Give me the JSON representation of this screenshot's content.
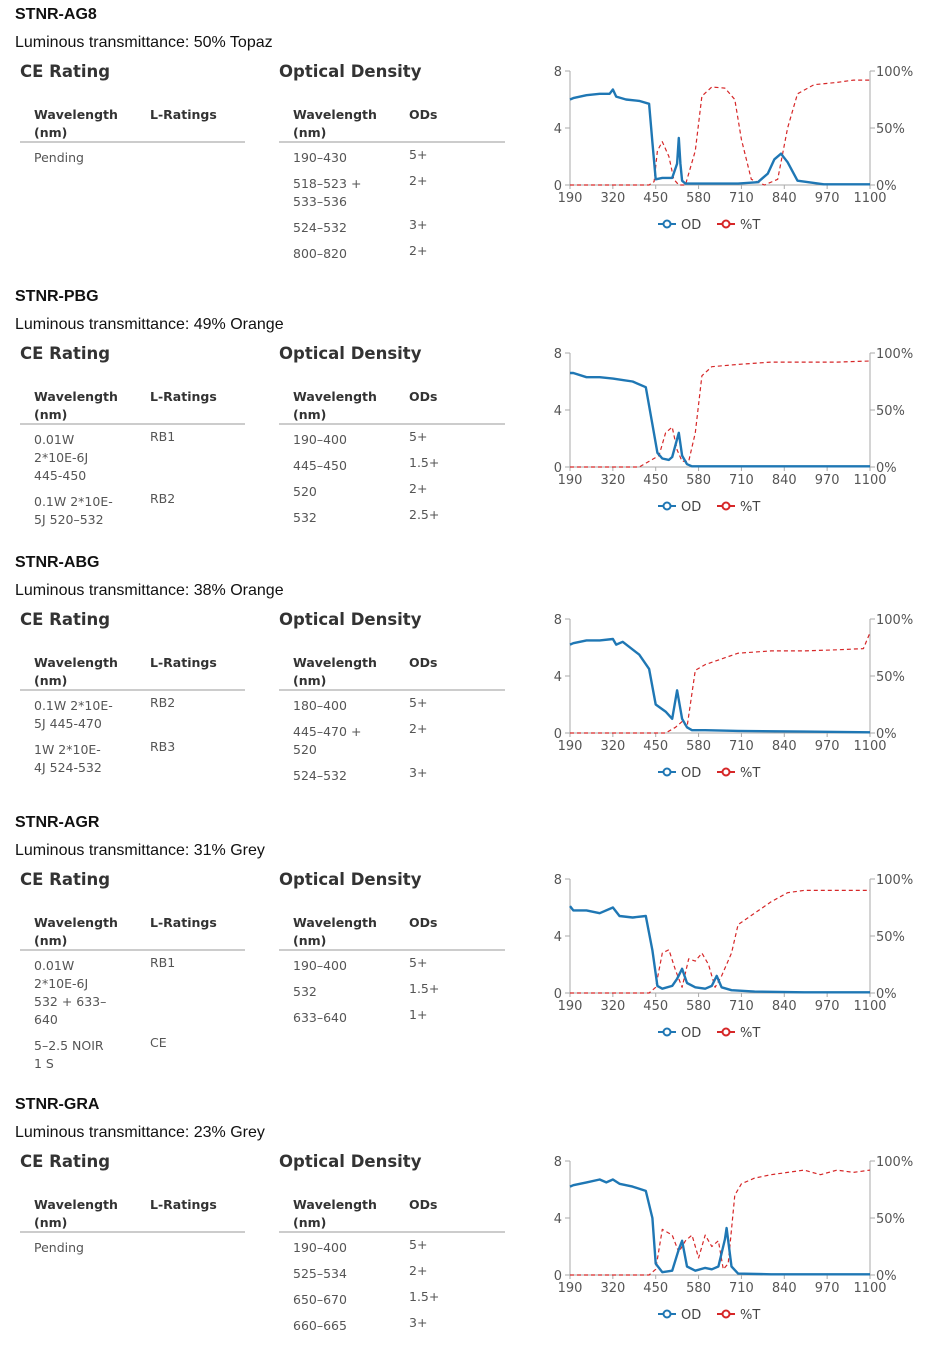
{
  "products": [
    {
      "name": "STNR-AG8",
      "luminous": "Luminous transmittance: 50% Topaz",
      "ce_title": "CE Rating",
      "od_title": "Optical Density",
      "ce_headers": [
        "Wavelength\n(nm)",
        "L-Ratings"
      ],
      "od_headers": [
        "Wavelength\n(nm)",
        "ODs"
      ],
      "ce_rows": [
        [
          "Pending",
          ""
        ]
      ],
      "od_rows": [
        [
          "190–430",
          "5+"
        ],
        [
          "518–523 +\n533–536",
          "2+"
        ],
        [
          "524–532",
          "3+"
        ],
        [
          "800–820",
          "2+"
        ]
      ],
      "chart_data": {
        "type": "line",
        "x_ticks": [
          "190",
          "320",
          "450",
          "580",
          "710",
          "840",
          "970",
          "1100"
        ],
        "y_left_ticks": [
          "0",
          "4",
          "8"
        ],
        "y_right_ticks": [
          "0%",
          "50%",
          "100%"
        ],
        "xlim": [
          190,
          1100
        ],
        "ylim_left": [
          0,
          8
        ],
        "ylim_right": [
          0,
          100
        ],
        "legend": "bottom",
        "series": [
          {
            "name": "OD",
            "color": "#1f77b4",
            "style": "solid",
            "axis": "left",
            "x": [
              190,
              200,
              240,
              280,
              310,
              320,
              330,
              360,
              400,
              430,
              440,
              450,
              470,
              500,
              515,
              520,
              525,
              530,
              540,
              560,
              600,
              700,
              760,
              790,
              810,
              830,
              850,
              880,
              960,
              1050,
              1100
            ],
            "y": [
              6.0,
              6.1,
              6.3,
              6.4,
              6.4,
              6.7,
              6.2,
              6.0,
              5.9,
              5.7,
              3.0,
              0.4,
              0.5,
              0.5,
              1.5,
              3.3,
              1.5,
              0.3,
              0.1,
              0.1,
              0.1,
              0.1,
              0.2,
              0.8,
              1.8,
              2.2,
              1.6,
              0.3,
              0.05,
              0.05,
              0.05
            ]
          },
          {
            "name": "%T",
            "color": "#d62728",
            "style": "dashed",
            "axis": "right",
            "x": [
              190,
              430,
              445,
              455,
              470,
              490,
              505,
              520,
              540,
              570,
              590,
              620,
              660,
              690,
              710,
              740,
              780,
              820,
              850,
              880,
              930,
              1000,
              1050,
              1100
            ],
            "y": [
              0,
              0,
              3,
              30,
              38,
              25,
              5,
              0,
              0,
              30,
              78,
              86,
              85,
              75,
              40,
              5,
              0,
              5,
              50,
              80,
              88,
              90,
              92,
              92
            ]
          }
        ]
      }
    },
    {
      "name": "STNR-PBG",
      "luminous": "Luminous transmittance: 49% Orange",
      "ce_title": "CE Rating",
      "od_title": "Optical Density",
      "ce_headers": [
        "Wavelength\n(nm)",
        "L-Ratings"
      ],
      "od_headers": [
        "Wavelength\n(nm)",
        "ODs"
      ],
      "ce_rows": [
        [
          "0.01W\n2*10E-6J\n445-450",
          "RB1"
        ],
        [
          "0.1W 2*10E-\n5J 520–532",
          "RB2"
        ]
      ],
      "od_rows": [
        [
          "190–400",
          "5+"
        ],
        [
          "445–450",
          "1.5+"
        ],
        [
          "520",
          "2+"
        ],
        [
          "532",
          "2.5+"
        ]
      ],
      "chart_data": {
        "type": "line",
        "x_ticks": [
          "190",
          "320",
          "450",
          "580",
          "710",
          "840",
          "970",
          "1100"
        ],
        "y_left_ticks": [
          "0",
          "4",
          "8"
        ],
        "y_right_ticks": [
          "0%",
          "50%",
          "100%"
        ],
        "xlim": [
          190,
          1100
        ],
        "ylim_left": [
          0,
          8
        ],
        "ylim_right": [
          0,
          100
        ],
        "legend": "bottom",
        "series": [
          {
            "name": "OD",
            "color": "#1f77b4",
            "style": "solid",
            "axis": "left",
            "x": [
              190,
              200,
              240,
              280,
              320,
              380,
              420,
              440,
              455,
              470,
              490,
              500,
              520,
              530,
              545,
              560,
              600,
              700,
              900,
              1100
            ],
            "y": [
              6.6,
              6.6,
              6.3,
              6.3,
              6.2,
              6.0,
              5.6,
              3.0,
              1.0,
              0.6,
              0.5,
              0.7,
              2.4,
              0.8,
              0.2,
              0.05,
              0.05,
              0.05,
              0.05,
              0.05
            ]
          },
          {
            "name": "%T",
            "color": "#d62728",
            "style": "dashed",
            "axis": "right",
            "x": [
              190,
              400,
              460,
              480,
              500,
              515,
              530,
              550,
              570,
              590,
              620,
              700,
              800,
              900,
              1000,
              1100
            ],
            "y": [
              0,
              0,
              10,
              30,
              35,
              15,
              5,
              5,
              30,
              80,
              88,
              90,
              92,
              92,
              92,
              93
            ]
          }
        ]
      }
    },
    {
      "name": "STNR-ABG",
      "luminous": "Luminous transmittance: 38% Orange",
      "ce_title": "CE Rating",
      "od_title": "Optical Density",
      "ce_headers": [
        "Wavelength\n(nm)",
        "L-Ratings"
      ],
      "od_headers": [
        "Wavelength\n(nm)",
        "ODs"
      ],
      "ce_rows": [
        [
          "0.1W 2*10E-\n5J 445-470",
          "RB2"
        ],
        [
          "1W 2*10E-\n4J 524-532",
          "RB3"
        ]
      ],
      "od_rows": [
        [
          "180–400",
          "5+"
        ],
        [
          "445–470 +\n520",
          "2+"
        ],
        [
          "524–532",
          "3+"
        ]
      ],
      "chart_data": {
        "type": "line",
        "x_ticks": [
          "190",
          "320",
          "450",
          "580",
          "710",
          "840",
          "970",
          "1100"
        ],
        "y_left_ticks": [
          "0",
          "4",
          "8"
        ],
        "y_right_ticks": [
          "0%",
          "50%",
          "100%"
        ],
        "xlim": [
          190,
          1100
        ],
        "ylim_left": [
          0,
          8
        ],
        "ylim_right": [
          0,
          100
        ],
        "legend": "bottom",
        "series": [
          {
            "name": "OD",
            "color": "#1f77b4",
            "style": "solid",
            "axis": "left",
            "x": [
              190,
              200,
              240,
              280,
              320,
              330,
              350,
              400,
              430,
              450,
              480,
              500,
              515,
              530,
              545,
              560,
              600,
              700,
              900,
              1100
            ],
            "y": [
              6.2,
              6.3,
              6.5,
              6.5,
              6.6,
              6.2,
              6.4,
              5.5,
              4.5,
              2.0,
              1.5,
              1.0,
              3.0,
              1.0,
              0.4,
              0.2,
              0.2,
              0.15,
              0.1,
              0.05
            ]
          },
          {
            "name": "%T",
            "color": "#d62728",
            "style": "dashed",
            "axis": "right",
            "x": [
              190,
              480,
              510,
              530,
              545,
              570,
              600,
              650,
              700,
              800,
              900,
              1000,
              1080,
              1100
            ],
            "y": [
              0,
              0,
              5,
              10,
              5,
              55,
              60,
              65,
              70,
              72,
              72,
              73,
              74,
              88
            ]
          }
        ]
      }
    },
    {
      "name": "STNR-AGR",
      "luminous": "Luminous transmittance: 31% Grey",
      "ce_title": "CE Rating",
      "od_title": "Optical Density",
      "ce_headers": [
        "Wavelength\n(nm)",
        "L-Ratings"
      ],
      "od_headers": [
        "Wavelength\n(nm)",
        "ODs"
      ],
      "ce_rows": [
        [
          "0.01W\n2*10E-6J\n532 + 633–\n640",
          "RB1"
        ],
        [
          "5–2.5 NOIR\n1 S",
          "CE"
        ]
      ],
      "od_rows": [
        [
          "190–400",
          "5+"
        ],
        [
          "532",
          "1.5+"
        ],
        [
          "633–640",
          "1+"
        ]
      ],
      "chart_data": {
        "type": "line",
        "x_ticks": [
          "190",
          "320",
          "450",
          "580",
          "710",
          "840",
          "970",
          "1100"
        ],
        "y_left_ticks": [
          "0",
          "4",
          "8"
        ],
        "y_right_ticks": [
          "0%",
          "50%",
          "100%"
        ],
        "xlim": [
          190,
          1100
        ],
        "ylim_left": [
          0,
          8
        ],
        "ylim_right": [
          0,
          100
        ],
        "legend": "bottom",
        "series": [
          {
            "name": "OD",
            "color": "#1f77b4",
            "style": "solid",
            "axis": "left",
            "x": [
              190,
              200,
              240,
              280,
              320,
              340,
              380,
              420,
              440,
              455,
              470,
              500,
              515,
              530,
              545,
              570,
              600,
              620,
              635,
              650,
              680,
              750,
              900,
              1100
            ],
            "y": [
              6.1,
              5.8,
              5.8,
              5.6,
              6.0,
              5.4,
              5.3,
              5.4,
              3.0,
              0.5,
              0.3,
              0.5,
              1.0,
              1.7,
              0.7,
              0.4,
              0.3,
              0.5,
              1.2,
              0.4,
              0.2,
              0.1,
              0.05,
              0.05
            ]
          },
          {
            "name": "%T",
            "color": "#d62728",
            "style": "dashed",
            "axis": "right",
            "x": [
              190,
              430,
              450,
              470,
              490,
              510,
              530,
              550,
              570,
              590,
              610,
              630,
              650,
              680,
              700,
              750,
              800,
              850,
              900,
              1000,
              1100
            ],
            "y": [
              0,
              0,
              5,
              35,
              38,
              20,
              5,
              30,
              28,
              35,
              25,
              5,
              15,
              35,
              60,
              70,
              80,
              88,
              90,
              90,
              90
            ]
          }
        ]
      }
    },
    {
      "name": "STNR-GRA",
      "luminous": "Luminous transmittance: 23% Grey",
      "ce_title": "CE Rating",
      "od_title": "Optical Density",
      "ce_headers": [
        "Wavelength\n(nm)",
        "L-Ratings"
      ],
      "od_headers": [
        "Wavelength\n(nm)",
        "ODs"
      ],
      "ce_rows": [
        [
          "Pending",
          ""
        ]
      ],
      "od_rows": [
        [
          "190–400",
          "5+"
        ],
        [
          "525–534",
          "2+"
        ],
        [
          "650–670",
          "1.5+"
        ],
        [
          "660–665",
          "3+"
        ]
      ],
      "chart_data": {
        "type": "line",
        "x_ticks": [
          "190",
          "320",
          "450",
          "580",
          "710",
          "840",
          "970",
          "1100"
        ],
        "y_left_ticks": [
          "0",
          "4",
          "8"
        ],
        "y_right_ticks": [
          "0%",
          "50%",
          "100%"
        ],
        "xlim": [
          190,
          1100
        ],
        "ylim_left": [
          0,
          8
        ],
        "ylim_right": [
          0,
          100
        ],
        "legend": "bottom",
        "series": [
          {
            "name": "OD",
            "color": "#1f77b4",
            "style": "solid",
            "axis": "left",
            "x": [
              190,
              200,
              240,
              280,
              300,
              320,
              340,
              380,
              420,
              440,
              450,
              470,
              500,
              520,
              530,
              545,
              570,
              600,
              620,
              640,
              660,
              665,
              680,
              700,
              800,
              1100
            ],
            "y": [
              6.2,
              6.3,
              6.5,
              6.7,
              6.5,
              6.7,
              6.4,
              6.2,
              5.9,
              4.0,
              0.8,
              0.2,
              0.3,
              1.8,
              2.4,
              0.6,
              0.3,
              0.5,
              0.4,
              0.6,
              2.5,
              3.3,
              0.6,
              0.1,
              0.05,
              0.05
            ]
          },
          {
            "name": "%T",
            "color": "#d62728",
            "style": "dashed",
            "axis": "right",
            "x": [
              190,
              430,
              450,
              470,
              500,
              520,
              540,
              560,
              580,
              600,
              620,
              640,
              655,
              670,
              690,
              710,
              750,
              800,
              850,
              900,
              950,
              1000,
              1050,
              1100
            ],
            "y": [
              0,
              0,
              5,
              40,
              35,
              20,
              30,
              35,
              15,
              35,
              25,
              30,
              5,
              10,
              70,
              80,
              85,
              88,
              90,
              92,
              88,
              92,
              90,
              92
            ]
          }
        ]
      }
    }
  ]
}
